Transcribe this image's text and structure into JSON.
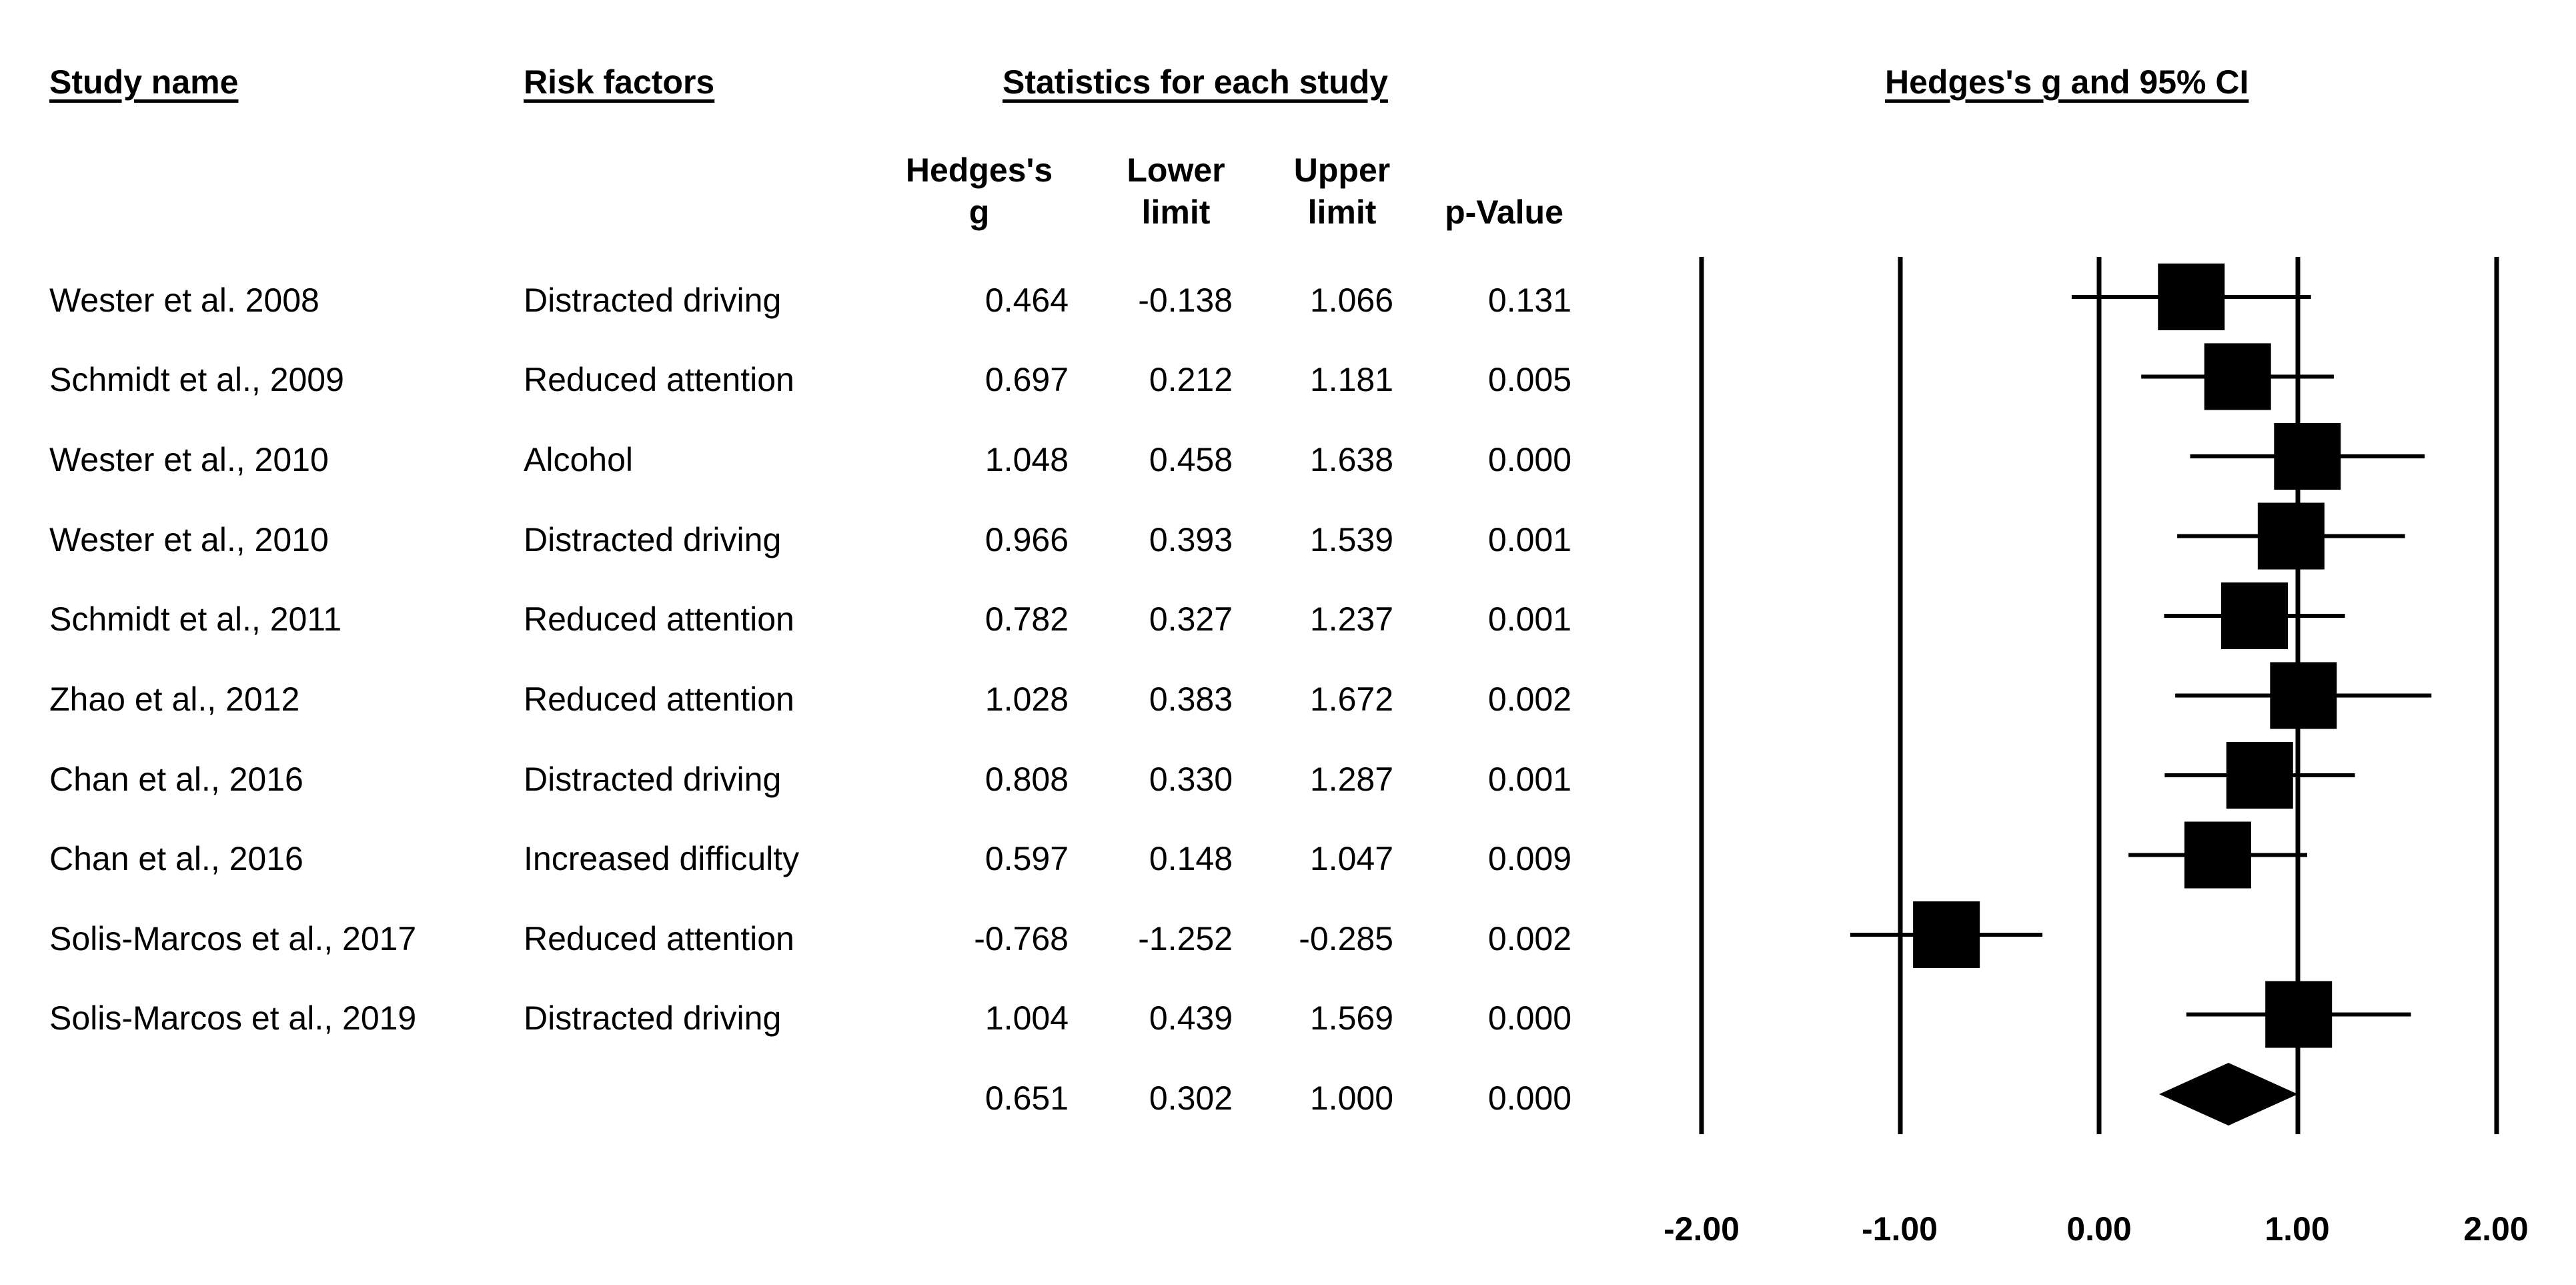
{
  "headers": {
    "study_name": "Study name",
    "risk_factors": "Risk factors",
    "statistics": "Statistics for each study",
    "plot_title": "Hedges's g and 95% CI"
  },
  "columns": {
    "g_line1": "Hedges's",
    "g_line2": "g",
    "lower_line1": "Lower",
    "lower_line2": "limit",
    "upper_line1": "Upper",
    "upper_line2": "limit",
    "pvalue": "p-Value"
  },
  "rows": [
    {
      "study": "Wester et al. 2008",
      "risk": "Distracted driving",
      "g": "0.464",
      "lower": "-0.138",
      "upper": "1.066",
      "p": "0.131"
    },
    {
      "study": "Schmidt et al., 2009",
      "risk": "Reduced attention",
      "g": "0.697",
      "lower": "0.212",
      "upper": "1.181",
      "p": "0.005"
    },
    {
      "study": "Wester et al., 2010",
      "risk": "Alcohol",
      "g": "1.048",
      "lower": "0.458",
      "upper": "1.638",
      "p": "0.000"
    },
    {
      "study": "Wester et al., 2010",
      "risk": "Distracted driving",
      "g": "0.966",
      "lower": "0.393",
      "upper": "1.539",
      "p": "0.001"
    },
    {
      "study": "Schmidt et al., 2011",
      "risk": "Reduced attention",
      "g": "0.782",
      "lower": "0.327",
      "upper": "1.237",
      "p": "0.001"
    },
    {
      "study": "Zhao et al., 2012",
      "risk": "Reduced attention",
      "g": "1.028",
      "lower": "0.383",
      "upper": "1.672",
      "p": "0.002"
    },
    {
      "study": "Chan et al., 2016",
      "risk": "Distracted driving",
      "g": "0.808",
      "lower": "0.330",
      "upper": "1.287",
      "p": "0.001"
    },
    {
      "study": "Chan et al., 2016",
      "risk": "Increased difficulty",
      "g": "0.597",
      "lower": "0.148",
      "upper": "1.047",
      "p": "0.009"
    },
    {
      "study": "Solis-Marcos et al., 2017",
      "risk": "Reduced attention",
      "g": "-0.768",
      "lower": "-1.252",
      "upper": "-0.285",
      "p": "0.002"
    },
    {
      "study": "Solis-Marcos et al., 2019",
      "risk": "Distracted driving",
      "g": "1.004",
      "lower": "0.439",
      "upper": "1.569",
      "p": "0.000"
    }
  ],
  "summary": {
    "g": "0.651",
    "lower": "0.302",
    "upper": "1.000",
    "p": "0.000"
  },
  "x_ticks": [
    "-2.00",
    "-1.00",
    "0.00",
    "1.00",
    "2.00"
  ],
  "chart_data": {
    "type": "scatter",
    "subtype": "forest",
    "title": "Hedges's g and 95% CI",
    "xlim": [
      -2,
      2
    ],
    "x_ticks": [
      -2,
      -1,
      0,
      1,
      2
    ],
    "reference_lines": [
      -2,
      -1,
      0,
      1,
      2
    ],
    "categories": [
      "Wester et al. 2008",
      "Schmidt et al., 2009",
      "Wester et al., 2010",
      "Wester et al., 2010",
      "Schmidt et al., 2011",
      "Zhao et al., 2012",
      "Chan et al., 2016",
      "Chan et al., 2016",
      "Solis-Marcos et al., 2017",
      "Solis-Marcos et al., 2019"
    ],
    "estimates": [
      0.464,
      0.697,
      1.048,
      0.966,
      0.782,
      1.028,
      0.808,
      0.597,
      -0.768,
      1.004
    ],
    "lower": [
      -0.138,
      0.212,
      0.458,
      0.393,
      0.327,
      0.383,
      0.33,
      0.148,
      -1.252,
      0.439
    ],
    "upper": [
      1.066,
      1.181,
      1.638,
      1.539,
      1.237,
      1.672,
      1.287,
      1.047,
      -0.285,
      1.569
    ],
    "summary": {
      "estimate": 0.651,
      "lower": 0.302,
      "upper": 1.0
    }
  }
}
